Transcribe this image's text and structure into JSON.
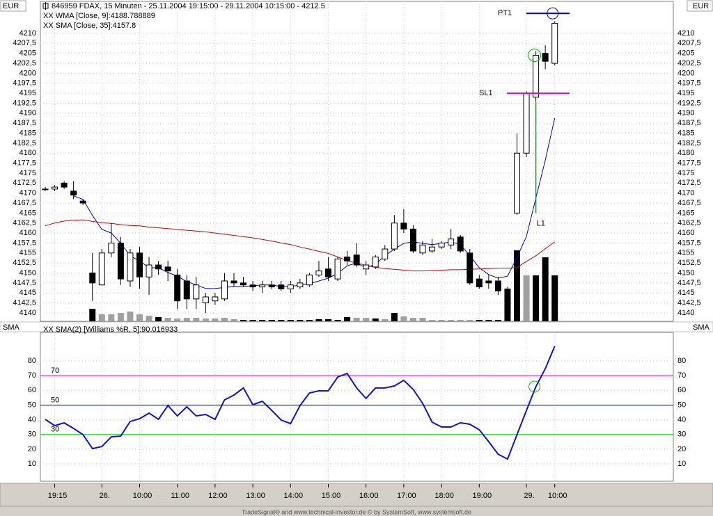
{
  "chart_data": [
    {
      "type": "candlestick",
      "title": "846959 FDAX, 15 Minuten - 25.11.2004 19:15:00 - 29.11.2004 10:15:00 - 4212.5",
      "unit_label": "EUR",
      "categories": [
        null,
        "19:15",
        null,
        null,
        null,
        null,
        "26.",
        null,
        null,
        null,
        "10:00",
        null,
        null,
        null,
        "11:00",
        null,
        null,
        null,
        "12:00",
        null,
        null,
        null,
        "13:00",
        null,
        null,
        null,
        "14:00",
        null,
        null,
        null,
        "15:00",
        null,
        null,
        null,
        "16:00",
        null,
        null,
        null,
        "17:00",
        null,
        null,
        null,
        "18:00",
        null,
        null,
        null,
        "19:00",
        null,
        null,
        null,
        null,
        "29.",
        null,
        null,
        "10:00"
      ],
      "open": [
        4171,
        4171,
        4172.5,
        4170.5,
        4168,
        4150,
        4147,
        4155,
        4157.5,
        4148,
        4155,
        4149,
        4152,
        4151.5,
        4149.5,
        4148,
        4143.5,
        4142.5,
        4143,
        4143.5,
        4148,
        4147.5,
        4147,
        4146.5,
        4147,
        4147,
        4146,
        4146.5,
        4147,
        4149.5,
        4151,
        4148.5,
        4154,
        4154.5,
        4151,
        4151.5,
        4153.5,
        4156,
        4162.5,
        4161,
        4155,
        4155.5,
        4156.5,
        4157,
        4159,
        4155,
        4148.5,
        4148,
        4148,
        4146,
        4165,
        4180,
        4194,
        4205,
        4202.5
      ],
      "high": [
        4171.5,
        4172,
        4173,
        4173,
        4168.5,
        4155,
        4156,
        4162.5,
        4159,
        4156,
        4156.5,
        4154,
        4153,
        4153,
        4151,
        4149.5,
        4149,
        4145,
        4145,
        4150,
        4150,
        4149,
        4148,
        4148,
        4148,
        4148,
        4148,
        4148.5,
        4150,
        4153,
        4154,
        4154,
        4155.5,
        4157.5,
        4153,
        4154.5,
        4157,
        4164.5,
        4166,
        4162,
        4158,
        4158.5,
        4158,
        4161,
        4159.5,
        4156,
        4149.5,
        4149.5,
        4149,
        4146.5,
        4185,
        4195.5,
        4205.5,
        4207,
        4213
      ],
      "low": [
        4170.5,
        4170.5,
        4171,
        4168.5,
        4167,
        4143,
        4147,
        4154,
        4147,
        4146.5,
        4146,
        4144.5,
        4149.5,
        4148,
        4141,
        4141,
        4141,
        4140,
        4142,
        4143,
        4146.5,
        4146.5,
        4145.5,
        4145,
        4146,
        4145.5,
        4145,
        4146,
        4146.5,
        4149,
        4148,
        4148,
        4152,
        4151.5,
        4149.5,
        4151,
        4153,
        4155.5,
        4160,
        4155,
        4154.5,
        4155,
        4156,
        4156,
        4155,
        4147,
        4146,
        4146,
        4144.5,
        4142.5,
        4164.5,
        4179,
        4193,
        4201,
        4202
      ],
      "close": [
        4171,
        4171.5,
        4171.5,
        4169.5,
        4167.5,
        4147.5,
        4155,
        4157.5,
        4148.5,
        4155,
        4149,
        4152,
        4151,
        4150.5,
        4143,
        4143.5,
        4147,
        4144,
        4144,
        4148,
        4147.5,
        4147,
        4146.5,
        4147,
        4146.5,
        4146,
        4147,
        4147.5,
        4149.5,
        4150.5,
        4149,
        4153.5,
        4153,
        4152,
        4152,
        4154,
        4156,
        4162.5,
        4161,
        4155.5,
        4157,
        4156.5,
        4157.5,
        4158.5,
        4155.5,
        4147.5,
        4146.5,
        4147.5,
        4145.5,
        4143,
        4180,
        4195,
        4204.5,
        4203,
        4212.5
      ],
      "up_color": "#ffffff",
      "down_color": "#000000",
      "volume": {
        "values": [
          0,
          0,
          0,
          0,
          0,
          18,
          10,
          10,
          12,
          14,
          10,
          8,
          6,
          5,
          4,
          5,
          5,
          4,
          4,
          5,
          3,
          2,
          2,
          2,
          2,
          2,
          2,
          2,
          2,
          3,
          3,
          2,
          6,
          5,
          5,
          4,
          3,
          12,
          7,
          5,
          5,
          2,
          2,
          2,
          2,
          2,
          2,
          2,
          2,
          34,
          102,
          66,
          66,
          92,
          66
        ],
        "colors": [
          "#000000",
          "#000000",
          "#000000",
          "#000000",
          "#000000",
          "#000000",
          "#a0a0a0",
          "#a0a0a0",
          "#a0a0a0",
          "#a0a0a0",
          "#a0a0a0",
          "#a0a0a0",
          "#000000",
          "#a0a0a0",
          "#a0a0a0",
          "#a0a0a0",
          "#a0a0a0",
          "#a0a0a0",
          "#a0a0a0",
          "#a0a0a0",
          "#a0a0a0",
          "#000000",
          "#000000",
          "#000000",
          "#000000",
          "#000000",
          "#000000",
          "#000000",
          "#000000",
          "#000000",
          "#000000",
          "#000000",
          "#000000",
          "#a0a0a0",
          "#a0a0a0",
          "#000000",
          "#a0a0a0",
          "#000000",
          "#a0a0a0",
          "#a0a0a0",
          "#a0a0a0",
          "#a0a0a0",
          "#a0a0a0",
          "#a0a0a0",
          "#a0a0a0",
          "#a0a0a0",
          "#000000",
          "#000000",
          "#000000",
          "#000000",
          "#000000",
          "#a0a0a0",
          "#000000",
          "#000000",
          "#000000"
        ],
        "vlim": [
          0,
          460
        ]
      },
      "series": [
        {
          "name": "XX WMA [Close, 9]:4188.788889",
          "color": "#0000cc",
          "values": [
            null,
            null,
            null,
            4169.3,
            4168.4,
            4164.4,
            4160.9,
            4160.0,
            4157.4,
            4154.3,
            4153.0,
            4151.3,
            4151.3,
            4150.1,
            4149.2,
            4147.8,
            4147.0,
            4146.1,
            4146.1,
            4146.4,
            4146.6,
            4146.6,
            4146.8,
            4147.0,
            4147.0,
            4146.6,
            4146.6,
            4147.0,
            4147.3,
            4148.0,
            4148.7,
            4149.9,
            4151.8,
            4152.5,
            4151.3,
            4152.2,
            4154.3,
            4156.0,
            4157.4,
            4157.8,
            4157.4,
            4157.1,
            4157.4,
            4157.8,
            4157.1,
            4154.3,
            4151.3,
            4149.6,
            4148.7,
            4149.2,
            4153.9,
            4159.2,
            4168.7,
            4178.3,
            4188.788889
          ]
        },
        {
          "name": "XX SMA [Close, 35]:4157.8",
          "color": "#cc0000",
          "values": [
            4161.8,
            4162.5,
            4163.0,
            4163.2,
            4163.3,
            4162.9,
            4162.6,
            4162.4,
            4162.1,
            4161.9,
            4161.8,
            4161.5,
            4161.3,
            4161.1,
            4160.9,
            4160.7,
            4160.5,
            4160.3,
            4160.0,
            4159.7,
            4159.4,
            4159.1,
            4158.8,
            4158.4,
            4158.0,
            4157.5,
            4157.1,
            4156.5,
            4156.0,
            4155.4,
            4154.9,
            4154.0,
            4153.1,
            4152.5,
            4151.9,
            4151.4,
            4151.1,
            4150.9,
            4150.7,
            4150.5,
            4150.5,
            4150.6,
            4150.7,
            4150.8,
            4150.8,
            4150.9,
            4151.0,
            4151.1,
            4151.2,
            4151.2,
            4151.4,
            4152.9,
            4154.3,
            4156.1,
            4157.8
          ]
        }
      ],
      "annotations": [
        {
          "label": "PT1",
          "value": 4215,
          "color": "#0000cc"
        },
        {
          "label": "SL1",
          "value": 4195,
          "color": "#e000e0"
        },
        {
          "label": "L1",
          "value": 4165,
          "color": "#00b000"
        }
      ],
      "ylim": [
        4137.9,
        4218
      ],
      "yticks": [
        4140,
        {
          "value": 4142.5,
          "label": "4142,5"
        },
        4145,
        {
          "value": 4147.5,
          "label": "4147,5"
        },
        4150,
        {
          "value": 4152.5,
          "label": "4152,5"
        },
        4155,
        {
          "value": 4157.5,
          "label": "4157,5"
        },
        4160,
        {
          "value": 4162.5,
          "label": "4162,5"
        },
        4165,
        {
          "value": 4167.5,
          "label": "4167,5"
        },
        4170,
        {
          "value": 4172.5,
          "label": "4172,5"
        },
        4175,
        {
          "value": 4177.5,
          "label": "4177,5"
        },
        4180,
        {
          "value": 4182.5,
          "label": "4182,5"
        },
        4185,
        {
          "value": 4187.5,
          "label": "4187,5"
        },
        4190,
        {
          "value": 4192.5,
          "label": "4192,5"
        },
        4195,
        {
          "value": 4197.5,
          "label": "4197,5"
        },
        4200,
        {
          "value": 4202.5,
          "label": "4202,5"
        },
        4205,
        {
          "value": 4207.5,
          "label": "4207,5"
        },
        4210
      ],
      "grid": true
    },
    {
      "type": "line",
      "unit_label": "SMA",
      "series": [
        {
          "name": "XX SMA(2) [Williams %R, 5]:90.016933",
          "color": "#1010d0",
          "values": [
            40.3,
            36.0,
            37.9,
            34.1,
            29.9,
            20.4,
            21.8,
            28.4,
            28.9,
            38.8,
            40.7,
            44.5,
            40.3,
            49.7,
            42.6,
            48.8,
            42.6,
            43.6,
            40.3,
            53.5,
            56.8,
            61.6,
            50.2,
            52.6,
            46.4,
            39.8,
            37.4,
            49.7,
            58.2,
            59.7,
            59.7,
            69.1,
            71.5,
            61.6,
            54.5,
            61.6,
            61.6,
            63.0,
            66.8,
            60.6,
            51.1,
            38.4,
            35.1,
            35.1,
            37.9,
            37.0,
            33.2,
            25.1,
            16.6,
            13.3,
            29.9,
            46.4,
            62.5,
            74.8,
            90.016933
          ]
        }
      ],
      "levels": [
        {
          "value": 70,
          "color": "#e000e0"
        },
        {
          "value": 50,
          "color": "#0000c0"
        },
        {
          "value": 30,
          "color": "#00c000"
        }
      ],
      "ylim": [
        -1.8,
        99.4
      ],
      "yticks": [
        10,
        20,
        30,
        40,
        50,
        60,
        70,
        80
      ],
      "grid": true
    }
  ],
  "footer": "TradeSignal® and www.technical-investor.de © by SystemSoft, www.systemsoft.de"
}
